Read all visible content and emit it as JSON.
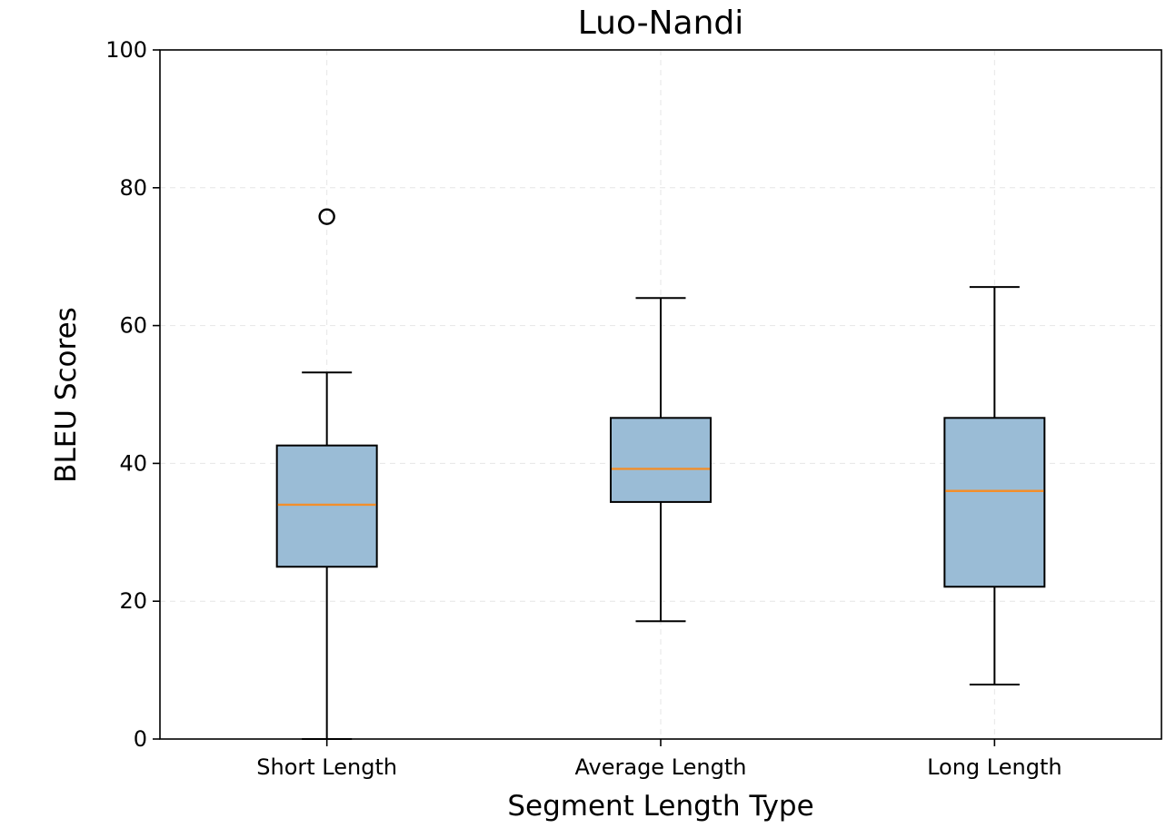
{
  "chart_data": {
    "type": "box",
    "title": "Luo-Nandi",
    "xlabel": "Segment Length Type",
    "ylabel": "BLEU Scores",
    "ylim": [
      0,
      100
    ],
    "yticks": [
      "0",
      "20",
      "40",
      "60",
      "80",
      "100"
    ],
    "grid": true,
    "categories": [
      "Short Length",
      "Average Length",
      "Long Length"
    ],
    "boxes": [
      {
        "whisker_low": 0,
        "q1": 25,
        "median": 34,
        "q3": 42.6,
        "whisker_high": 53.2,
        "outliers": [
          75.8
        ]
      },
      {
        "whisker_low": 17.1,
        "q1": 34.4,
        "median": 39.2,
        "q3": 46.6,
        "whisker_high": 64,
        "outliers": []
      },
      {
        "whisker_low": 7.9,
        "q1": 22.1,
        "median": 36,
        "q3": 46.6,
        "whisker_high": 65.6,
        "outliers": []
      }
    ],
    "colors": {
      "box_fill": "#9abcd6",
      "median": "#f28e2b",
      "edge": "#000000"
    }
  }
}
